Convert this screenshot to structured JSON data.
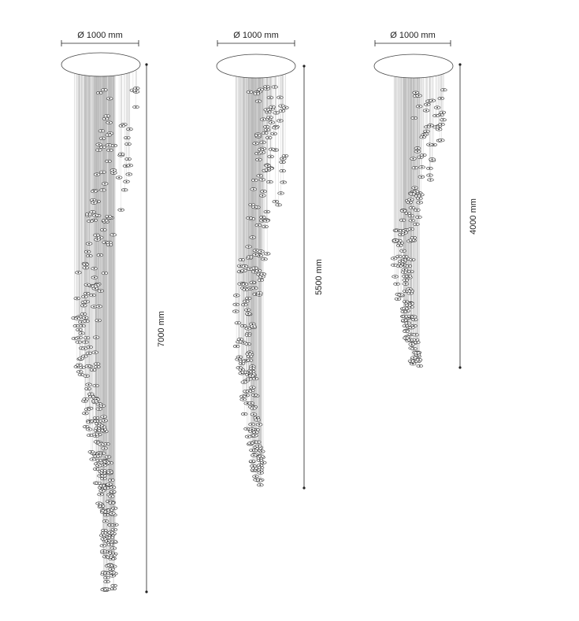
{
  "fixtures": [
    {
      "diameter": "Ø 1000 mm",
      "height": "7000 mm"
    },
    {
      "diameter": "Ø 1000 mm",
      "height": "5500 mm"
    },
    {
      "diameter": "Ø 1000 mm",
      "height": "4000 mm"
    }
  ]
}
